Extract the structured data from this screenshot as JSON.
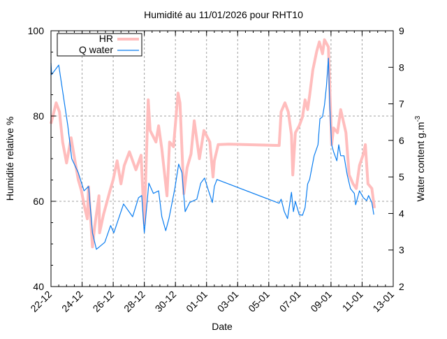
{
  "chart_data": {
    "type": "line",
    "title": "Humidité au 11/01/2026 pour RHT10",
    "xlabel": "Date",
    "ylabel": "Humidité relative %",
    "y2label": "Water content g.m",
    "y2label_sup": "-3",
    "xlim": [
      "2025-12-22T00:00",
      "2026-01-13T00:00"
    ],
    "ylim": [
      40,
      100
    ],
    "y2lim": [
      2,
      9
    ],
    "x_ticks": [
      {
        "date": "2025-12-22T00:00",
        "label": "22-12"
      },
      {
        "date": "2025-12-24T00:00",
        "label": "24-12"
      },
      {
        "date": "2025-12-26T00:00",
        "label": "26-12"
      },
      {
        "date": "2025-12-28T00:00",
        "label": "28-12"
      },
      {
        "date": "2025-12-30T00:00",
        "label": "30-12"
      },
      {
        "date": "2026-01-01T00:00",
        "label": "01-01"
      },
      {
        "date": "2026-01-03T00:00",
        "label": "03-01"
      },
      {
        "date": "2026-01-05T00:00",
        "label": "05-01"
      },
      {
        "date": "2026-01-07T00:00",
        "label": "07-01"
      },
      {
        "date": "2026-01-09T00:00",
        "label": "09-01"
      },
      {
        "date": "2026-01-11T00:00",
        "label": "11-01"
      },
      {
        "date": "2026-01-13T00:00",
        "label": "13-01"
      }
    ],
    "y_ticks": [
      "40",
      "60",
      "80",
      "100"
    ],
    "y2_ticks": [
      "2",
      "3",
      "4",
      "5",
      "6",
      "7",
      "8",
      "9"
    ],
    "grid": true,
    "legend_position": "top-left",
    "colors": {
      "HR": "#ffbdbd",
      "Q water": "#0a7df0"
    },
    "series": [
      {
        "name": "HR",
        "axis": "left",
        "points": [
          [
            "2025-12-22T00:00",
            78.2
          ],
          [
            "2025-12-22T08:00",
            83.1
          ],
          [
            "2025-12-22T13:00",
            81.0
          ],
          [
            "2025-12-22T18:00",
            73.9
          ],
          [
            "2025-12-23T00:00",
            69.0
          ],
          [
            "2025-12-23T07:00",
            74.9
          ],
          [
            "2025-12-23T13:00",
            69.5
          ],
          [
            "2025-12-23T18:00",
            65.1
          ],
          [
            "2025-12-23T23:00",
            62.5
          ],
          [
            "2025-12-24T03:00",
            59.2
          ],
          [
            "2025-12-24T08:00",
            55.9
          ],
          [
            "2025-12-24T10:00",
            63.4
          ],
          [
            "2025-12-24T16:00",
            49.3
          ],
          [
            "2025-12-24T19:00",
            53.6
          ],
          [
            "2025-12-25T02:00",
            61.3
          ],
          [
            "2025-12-25T03:00",
            52.6
          ],
          [
            "2025-12-25T09:00",
            56.9
          ],
          [
            "2025-12-25T19:00",
            62.5
          ],
          [
            "2025-12-26T00:00",
            65.1
          ],
          [
            "2025-12-26T06:00",
            69.5
          ],
          [
            "2025-12-26T12:00",
            64.1
          ],
          [
            "2025-12-26T17:00",
            68.4
          ],
          [
            "2025-12-27T01:00",
            71.6
          ],
          [
            "2025-12-27T11:00",
            67.4
          ],
          [
            "2025-12-27T19:00",
            70.8
          ],
          [
            "2025-12-28T00:00",
            54.8
          ],
          [
            "2025-12-28T06:00",
            83.8
          ],
          [
            "2025-12-28T09:00",
            76.6
          ],
          [
            "2025-12-28T18:00",
            73.9
          ],
          [
            "2025-12-28T22:00",
            77.7
          ],
          [
            "2025-12-29T03:00",
            72.3
          ],
          [
            "2025-12-29T11:00",
            61.3
          ],
          [
            "2025-12-29T15:00",
            73.9
          ],
          [
            "2025-12-29T21:00",
            72.8
          ],
          [
            "2025-12-30T04:00",
            85.4
          ],
          [
            "2025-12-30T07:00",
            83.1
          ],
          [
            "2025-12-30T13:00",
            61.8
          ],
          [
            "2025-12-30T18:00",
            67.9
          ],
          [
            "2025-12-31T00:00",
            71.1
          ],
          [
            "2025-12-31T05:00",
            78.9
          ],
          [
            "2025-12-31T13:00",
            70.0
          ],
          [
            "2025-12-31T20:00",
            76.6
          ],
          [
            "2026-01-01T05:00",
            73.9
          ],
          [
            "2026-01-01T10:00",
            65.7
          ],
          [
            "2026-01-01T12:00",
            69.5
          ],
          [
            "2026-01-01T18:00",
            73.3
          ],
          [
            "2026-01-02T10:00",
            73.4
          ],
          [
            "2026-01-05T16:00",
            73.1
          ],
          [
            "2026-01-05T19:00",
            81.0
          ],
          [
            "2026-01-06T01:00",
            83.1
          ],
          [
            "2026-01-06T06:00",
            81.0
          ],
          [
            "2026-01-06T11:00",
            75.6
          ],
          [
            "2026-01-06T13:00",
            66.2
          ],
          [
            "2026-01-06T17:00",
            76.1
          ],
          [
            "2026-01-06T23:00",
            77.7
          ],
          [
            "2026-01-07T04:00",
            79.8
          ],
          [
            "2026-01-07T08:00",
            83.8
          ],
          [
            "2026-01-07T12:00",
            81.5
          ],
          [
            "2026-01-07T15:00",
            84.8
          ],
          [
            "2026-01-07T20:00",
            90.8
          ],
          [
            "2026-01-08T02:00",
            95.2
          ],
          [
            "2026-01-08T06:00",
            97.4
          ],
          [
            "2026-01-08T11:00",
            94.6
          ],
          [
            "2026-01-08T14:00",
            97.9
          ],
          [
            "2026-01-08T20:00",
            96.2
          ],
          [
            "2026-01-08T23:00",
            82.6
          ],
          [
            "2026-01-09T01:00",
            73.3
          ],
          [
            "2026-01-09T04:00",
            77.2
          ],
          [
            "2026-01-09T10:00",
            76.1
          ],
          [
            "2026-01-09T15:00",
            81.5
          ],
          [
            "2026-01-09T23:00",
            76.1
          ],
          [
            "2026-01-10T04:00",
            66.2
          ],
          [
            "2026-01-10T10:00",
            64.1
          ],
          [
            "2026-01-10T15:00",
            63.0
          ],
          [
            "2026-01-10T20:00",
            68.4
          ],
          [
            "2026-01-11T02:00",
            71.1
          ],
          [
            "2026-01-11T05:00",
            73.3
          ],
          [
            "2026-01-11T09:00",
            64.1
          ],
          [
            "2026-01-11T15:00",
            63.0
          ],
          [
            "2026-01-11T19:00",
            58.4
          ]
        ]
      },
      {
        "name": "Q water",
        "axis": "right",
        "points": [
          [
            "2025-12-22T00:00",
            8.12
          ],
          [
            "2025-12-22T01:00",
            7.8
          ],
          [
            "2025-12-22T12:00",
            8.06
          ],
          [
            "2025-12-23T02:00",
            6.4
          ],
          [
            "2025-12-23T08:00",
            5.5
          ],
          [
            "2025-12-23T18:00",
            5.12
          ],
          [
            "2025-12-24T03:00",
            4.62
          ],
          [
            "2025-12-24T10:00",
            4.74
          ],
          [
            "2025-12-24T16:00",
            3.47
          ],
          [
            "2025-12-24T22:00",
            3.02
          ],
          [
            "2025-12-25T11:00",
            3.21
          ],
          [
            "2025-12-25T20:00",
            3.67
          ],
          [
            "2025-12-26T01:00",
            3.47
          ],
          [
            "2025-12-26T16:00",
            4.26
          ],
          [
            "2025-12-27T06:00",
            3.91
          ],
          [
            "2025-12-27T15:00",
            4.43
          ],
          [
            "2025-12-27T20:00",
            4.49
          ],
          [
            "2025-12-28T00:00",
            3.47
          ],
          [
            "2025-12-28T07:00",
            4.83
          ],
          [
            "2025-12-28T14:00",
            4.55
          ],
          [
            "2025-12-28T22:00",
            4.62
          ],
          [
            "2025-12-29T03:00",
            3.91
          ],
          [
            "2025-12-29T09:00",
            3.53
          ],
          [
            "2025-12-29T14:00",
            3.86
          ],
          [
            "2025-12-29T23:00",
            4.68
          ],
          [
            "2025-12-30T05:00",
            5.35
          ],
          [
            "2025-12-30T10:00",
            5.12
          ],
          [
            "2025-12-30T15:00",
            4.05
          ],
          [
            "2025-12-30T22:00",
            4.3
          ],
          [
            "2025-12-31T09:00",
            4.39
          ],
          [
            "2025-12-31T15:00",
            4.83
          ],
          [
            "2025-12-31T21:00",
            4.97
          ],
          [
            "2026-01-01T02:00",
            4.68
          ],
          [
            "2026-01-01T09:00",
            4.3
          ],
          [
            "2026-01-01T12:00",
            4.74
          ],
          [
            "2026-01-01T16:00",
            4.93
          ],
          [
            "2026-01-05T16:00",
            4.28
          ],
          [
            "2026-01-05T19:00",
            4.39
          ],
          [
            "2026-01-06T00:00",
            4.05
          ],
          [
            "2026-01-06T05:00",
            3.86
          ],
          [
            "2026-01-06T11:00",
            4.58
          ],
          [
            "2026-01-06T14:00",
            4.05
          ],
          [
            "2026-01-06T17:00",
            4.33
          ],
          [
            "2026-01-06T23:00",
            3.97
          ],
          [
            "2026-01-07T04:00",
            3.95
          ],
          [
            "2026-01-07T08:00",
            4.16
          ],
          [
            "2026-01-07T12:00",
            4.81
          ],
          [
            "2026-01-07T15:00",
            4.93
          ],
          [
            "2026-01-07T22:00",
            5.58
          ],
          [
            "2026-01-08T04:00",
            5.88
          ],
          [
            "2026-01-08T07:00",
            6.59
          ],
          [
            "2026-01-08T11:00",
            6.65
          ],
          [
            "2026-01-08T14:00",
            6.97
          ],
          [
            "2026-01-08T17:00",
            7.49
          ],
          [
            "2026-01-08T20:00",
            8.25
          ],
          [
            "2026-01-08T22:00",
            6.97
          ],
          [
            "2026-01-09T01:00",
            5.88
          ],
          [
            "2026-01-09T04:00",
            5.69
          ],
          [
            "2026-01-09T09:00",
            5.44
          ],
          [
            "2026-01-09T12:00",
            5.88
          ],
          [
            "2026-01-09T15:00",
            5.58
          ],
          [
            "2026-01-09T20:00",
            5.58
          ],
          [
            "2026-01-10T01:00",
            5.06
          ],
          [
            "2026-01-10T06:00",
            4.68
          ],
          [
            "2026-01-10T12:00",
            4.55
          ],
          [
            "2026-01-10T14:00",
            4.24
          ],
          [
            "2026-01-10T20:00",
            4.62
          ],
          [
            "2026-01-11T02:00",
            4.43
          ],
          [
            "2026-01-11T07:00",
            4.35
          ],
          [
            "2026-01-11T10:00",
            4.49
          ],
          [
            "2026-01-11T15:00",
            4.3
          ],
          [
            "2026-01-11T18:00",
            3.97
          ]
        ]
      }
    ]
  }
}
